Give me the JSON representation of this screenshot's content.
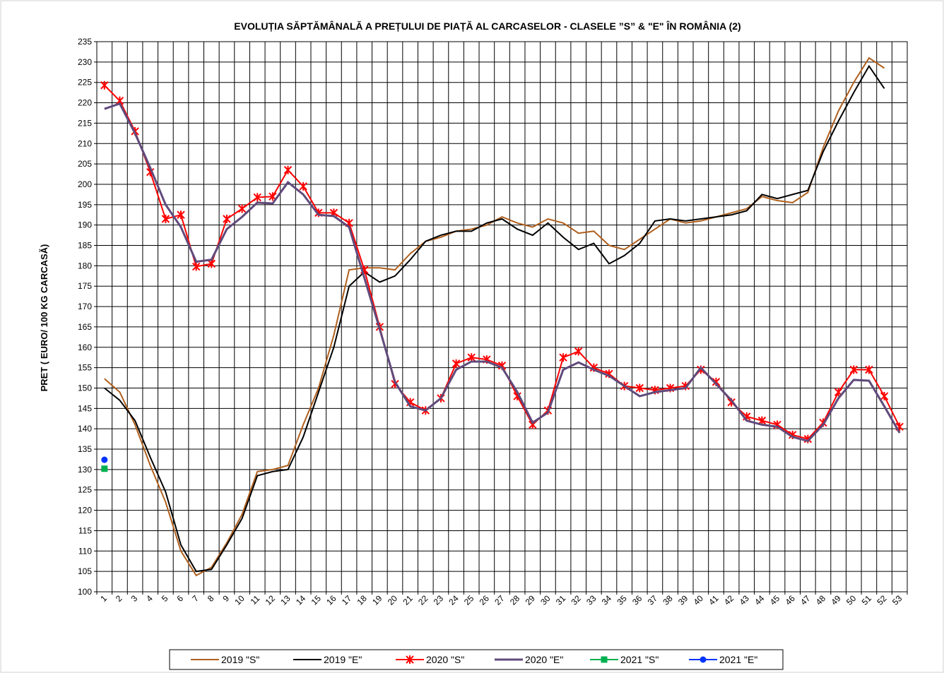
{
  "chart_data": {
    "type": "line",
    "title": "EVOLUȚIA SĂPTĂMÂNALĂ A PREȚULUI  DE PIAȚĂ  AL CARCASELOR  - CLASELE ”S” & \"E\"  ÎN ROMÂNIA (2)",
    "y_label": "PRET ( EURO/ 100 KG CARCASĂ)",
    "categories": [
      1,
      2,
      3,
      4,
      5,
      6,
      7,
      8,
      9,
      10,
      11,
      12,
      13,
      14,
      15,
      16,
      17,
      18,
      19,
      20,
      21,
      22,
      23,
      24,
      25,
      26,
      27,
      28,
      29,
      30,
      31,
      32,
      33,
      34,
      35,
      36,
      37,
      38,
      39,
      40,
      41,
      42,
      43,
      44,
      45,
      46,
      47,
      48,
      49,
      50,
      51,
      52,
      53
    ],
    "ylim": [
      100,
      235
    ],
    "yticks": [
      100,
      105,
      110,
      115,
      120,
      125,
      130,
      135,
      140,
      145,
      150,
      155,
      160,
      165,
      170,
      175,
      180,
      185,
      190,
      195,
      200,
      205,
      210,
      215,
      220,
      225,
      230,
      235
    ],
    "grid": true,
    "legend": "bottom",
    "series": [
      {
        "name": "2019 \"S\"",
        "color": "#b0601e",
        "marker": "none",
        "values": [
          152.3,
          149,
          141,
          131,
          122,
          110,
          104,
          106,
          112,
          119,
          129.5,
          130,
          131,
          141,
          150,
          163,
          179,
          179.5,
          179.5,
          179,
          183,
          186,
          187,
          188.5,
          189,
          190,
          192,
          190.5,
          189.5,
          191.5,
          190.5,
          188,
          188.5,
          185,
          184,
          186.5,
          189,
          191.5,
          190.5,
          191,
          192,
          193,
          194,
          197,
          196,
          195.5,
          198,
          209,
          218,
          225,
          231,
          228.5,
          null
        ]
      },
      {
        "name": "2019 \"E\"",
        "color": "#000000",
        "marker": "none",
        "values": [
          150,
          147,
          142,
          133,
          124.5,
          111.5,
          105,
          105.5,
          111.5,
          118,
          128.5,
          129.5,
          130,
          138,
          149,
          160,
          175,
          178.5,
          176,
          177.5,
          181.5,
          186,
          187.5,
          188.5,
          188.5,
          190.5,
          191.5,
          189,
          187.5,
          190.5,
          187,
          184,
          185.5,
          180.5,
          182.5,
          185.5,
          191,
          191.5,
          191,
          191.5,
          192,
          192.5,
          193.5,
          197.5,
          196.5,
          197.5,
          198.5,
          208,
          215.5,
          222.5,
          229,
          223.5,
          null
        ]
      },
      {
        "name": "2020 \"S\"",
        "color": "#ff0000",
        "marker": "x",
        "values": [
          224.3,
          220.5,
          213,
          203,
          191.5,
          192.5,
          179.8,
          180.5,
          191.5,
          194,
          196.8,
          197,
          203.5,
          199.5,
          193,
          193,
          190.5,
          179,
          165,
          151,
          146.5,
          144.5,
          147.5,
          156,
          157.5,
          157,
          155.5,
          148,
          141,
          144.5,
          157.5,
          159,
          155,
          153.5,
          150.5,
          150,
          149.5,
          150,
          150.5,
          154.5,
          151.5,
          146.5,
          143,
          142,
          141,
          138.5,
          137.5,
          141.5,
          149,
          154.5,
          154.5,
          148,
          140.5
        ]
      },
      {
        "name": "2020 \"E\"",
        "color": "#604a7b",
        "marker": "none",
        "values": [
          218.5,
          219.8,
          212.5,
          204,
          195,
          189.5,
          181,
          181.5,
          189,
          192,
          195.5,
          195.3,
          200.5,
          197.5,
          192.5,
          192.2,
          189.5,
          177,
          164.5,
          151.5,
          145.5,
          144.5,
          147.5,
          154.5,
          156.5,
          156.5,
          155,
          149,
          141.5,
          144,
          154.5,
          156.3,
          154.5,
          153,
          150.5,
          148,
          149,
          149.5,
          150,
          155,
          151,
          147,
          142,
          141,
          140.5,
          138,
          137,
          141,
          147.5,
          152,
          151.8,
          145.5,
          139
        ]
      },
      {
        "name": "2021 \"S\"",
        "color": "#00b050",
        "marker": "square",
        "values": [
          130.2,
          null,
          null,
          null,
          null,
          null,
          null,
          null,
          null,
          null,
          null,
          null,
          null,
          null,
          null,
          null,
          null,
          null,
          null,
          null,
          null,
          null,
          null,
          null,
          null,
          null,
          null,
          null,
          null,
          null,
          null,
          null,
          null,
          null,
          null,
          null,
          null,
          null,
          null,
          null,
          null,
          null,
          null,
          null,
          null,
          null,
          null,
          null,
          null,
          null,
          null,
          null,
          null
        ]
      },
      {
        "name": "2021 \"E\"",
        "color": "#0033ff",
        "marker": "circle",
        "values": [
          132.4,
          null,
          null,
          null,
          null,
          null,
          null,
          null,
          null,
          null,
          null,
          null,
          null,
          null,
          null,
          null,
          null,
          null,
          null,
          null,
          null,
          null,
          null,
          null,
          null,
          null,
          null,
          null,
          null,
          null,
          null,
          null,
          null,
          null,
          null,
          null,
          null,
          null,
          null,
          null,
          null,
          null,
          null,
          null,
          null,
          null,
          null,
          null,
          null,
          null,
          null,
          null,
          null
        ]
      }
    ]
  }
}
